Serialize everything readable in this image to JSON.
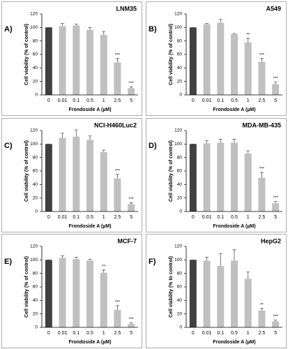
{
  "chart_data": [
    {
      "type": "bar",
      "panel": "A)",
      "title": "LNM35",
      "ylabel": "Cell viability (% of control)",
      "xlabel": "Frondoside A (µM)",
      "categories": [
        "0",
        "0.01",
        "0.1",
        "0.5",
        "1",
        "2.5",
        "5"
      ],
      "values": [
        100,
        102,
        103,
        96,
        89,
        48,
        10
      ],
      "errors": [
        0,
        4,
        2,
        4,
        5,
        6,
        2
      ],
      "significance": [
        null,
        null,
        null,
        null,
        null,
        "***",
        "***"
      ],
      "colors": [
        "#404040",
        "#c0c0c0",
        "#c0c0c0",
        "#c0c0c0",
        "#c0c0c0",
        "#c0c0c0",
        "#c0c0c0"
      ],
      "ylim": [
        0,
        120
      ],
      "yticks": [
        0,
        20,
        40,
        60,
        80,
        100,
        120
      ]
    },
    {
      "type": "bar",
      "panel": "B)",
      "title": "A549",
      "ylabel": "Cell viability (% of control)",
      "xlabel": "Frondoside A (µM)",
      "categories": [
        "0",
        "0.01",
        "0.1",
        "0.5",
        "1",
        "2.5",
        "5"
      ],
      "values": [
        100,
        105,
        107,
        90,
        78,
        49,
        16
      ],
      "errors": [
        0,
        1,
        5,
        1,
        6,
        5,
        3
      ],
      "significance": [
        null,
        null,
        null,
        null,
        "**",
        "***",
        "***"
      ],
      "colors": [
        "#404040",
        "#c0c0c0",
        "#c0c0c0",
        "#c0c0c0",
        "#c0c0c0",
        "#c0c0c0",
        "#c0c0c0"
      ],
      "ylim": [
        0,
        120
      ],
      "yticks": [
        0,
        20,
        40,
        60,
        80,
        100,
        120
      ]
    },
    {
      "type": "bar",
      "panel": "C)",
      "title": "NCI-H460Luc2",
      "ylabel": "Cell viability (% of control)",
      "xlabel": "Frondoside A (µM)",
      "categories": [
        "0",
        "0.01",
        "0.1",
        "0.5",
        "1",
        "2.5",
        "5"
      ],
      "values": [
        100,
        109,
        111,
        106,
        88,
        49,
        11
      ],
      "errors": [
        0,
        7,
        10,
        6,
        3,
        6,
        2
      ],
      "significance": [
        null,
        null,
        null,
        null,
        null,
        "***",
        "***"
      ],
      "colors": [
        "#404040",
        "#c0c0c0",
        "#c0c0c0",
        "#c0c0c0",
        "#c0c0c0",
        "#c0c0c0",
        "#c0c0c0"
      ],
      "ylim": [
        0,
        120
      ],
      "yticks": [
        0,
        20,
        40,
        60,
        80,
        100,
        120
      ]
    },
    {
      "type": "bar",
      "panel": "D)",
      "title": "MDA-MB-435",
      "ylabel": "Cell viability (% of control)",
      "xlabel": "Frondoside A (µM)",
      "categories": [
        "0",
        "0.01",
        "0.1",
        "0.5",
        "1",
        "2.5",
        "5"
      ],
      "values": [
        100,
        101,
        102,
        102,
        86,
        50,
        12
      ],
      "errors": [
        0,
        4,
        5,
        5,
        4,
        8,
        3
      ],
      "significance": [
        null,
        null,
        null,
        null,
        null,
        "***",
        "***"
      ],
      "colors": [
        "#404040",
        "#c0c0c0",
        "#c0c0c0",
        "#c0c0c0",
        "#c0c0c0",
        "#c0c0c0",
        "#c0c0c0"
      ],
      "ylim": [
        0,
        120
      ],
      "yticks": [
        0,
        20,
        40,
        60,
        80,
        100,
        120
      ]
    },
    {
      "type": "bar",
      "panel": "E)",
      "title": "MCF-7",
      "ylabel": "Cell viability (% of control)",
      "xlabel": "Frondoside A (µM)",
      "categories": [
        "0",
        "0.01",
        "0.1",
        "0.5",
        "1",
        "2.5",
        "5"
      ],
      "values": [
        100,
        103,
        101,
        99,
        81,
        26,
        5
      ],
      "errors": [
        0,
        3,
        3,
        2,
        4,
        6,
        2
      ],
      "significance": [
        null,
        null,
        null,
        null,
        "**",
        "***",
        "***"
      ],
      "colors": [
        "#404040",
        "#c0c0c0",
        "#c0c0c0",
        "#c0c0c0",
        "#c0c0c0",
        "#c0c0c0",
        "#c0c0c0"
      ],
      "ylim": [
        0,
        120
      ],
      "yticks": [
        0,
        20,
        40,
        60,
        80,
        100,
        120
      ]
    },
    {
      "type": "bar",
      "panel": "F)",
      "title": "HepG2",
      "ylabel": "Cell viability (% to control)",
      "xlabel": "Frondoside A (µM)",
      "categories": [
        "0",
        "0.01",
        "0.1",
        "0.5",
        "1",
        "2.5",
        "5"
      ],
      "values": [
        100,
        99,
        91,
        99,
        72,
        25,
        9
      ],
      "errors": [
        0,
        5,
        18,
        16,
        10,
        3,
        2
      ],
      "significance": [
        null,
        null,
        null,
        null,
        null,
        "**",
        "***"
      ],
      "colors": [
        "#404040",
        "#c0c0c0",
        "#c0c0c0",
        "#c0c0c0",
        "#c0c0c0",
        "#c0c0c0",
        "#c0c0c0"
      ],
      "ylim": [
        0,
        120
      ],
      "yticks": [
        0,
        20,
        40,
        60,
        80,
        100,
        120
      ]
    }
  ]
}
